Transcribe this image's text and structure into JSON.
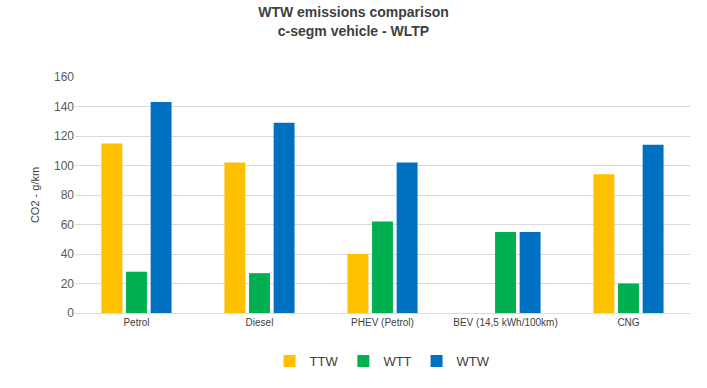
{
  "chart_data": {
    "type": "bar",
    "title": "WTW emissions comparison",
    "subtitle": "c-segm vehicle - WLTP",
    "y_label": "CO2 - g/km",
    "categories": [
      "Petrol",
      "Diesel",
      "PHEV (Petrol)",
      "BEV (14,5 kWh/100km)",
      "CNG"
    ],
    "series": [
      {
        "name": "TTW",
        "color": "#FFC000",
        "values": [
          115,
          102,
          40,
          0,
          94
        ]
      },
      {
        "name": "WTT",
        "color": "#00B050",
        "values": [
          28,
          27,
          62,
          55,
          20
        ]
      },
      {
        "name": "WTW",
        "color": "#0070C0",
        "values": [
          143,
          129,
          102,
          55,
          114
        ]
      }
    ],
    "ylim": [
      0,
      160
    ],
    "yticks": [
      0,
      20,
      40,
      60,
      80,
      100,
      120,
      140,
      160
    ],
    "grid": true,
    "legend": "bottom"
  }
}
